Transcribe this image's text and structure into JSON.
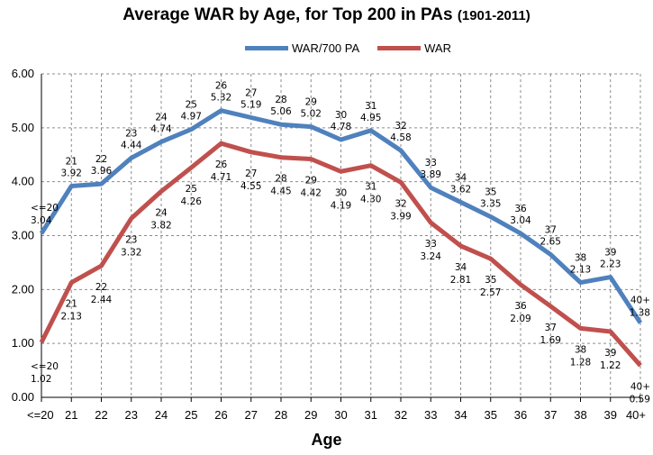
{
  "title": "Average WAR by Age, for Top 200 in PAs",
  "title_years": "(1901-2011)",
  "chart_data": {
    "type": "line",
    "title": "Average WAR by Age, for Top 200 in PAs (1901-2011)",
    "xlabel": "Age",
    "ylabel": "",
    "categories": [
      "<=20",
      "21",
      "22",
      "23",
      "24",
      "25",
      "26",
      "27",
      "28",
      "29",
      "30",
      "31",
      "32",
      "33",
      "34",
      "35",
      "36",
      "37",
      "38",
      "39",
      "40+"
    ],
    "ylim": [
      0,
      6
    ],
    "yticks": [
      "0.00",
      "1.00",
      "2.00",
      "3.00",
      "4.00",
      "5.00",
      "6.00"
    ],
    "grid": "dashed vertical and horizontal",
    "legend_position": "top",
    "series": [
      {
        "name": "WAR/700 PA",
        "color": "#4f81bd",
        "values": [
          3.04,
          3.92,
          3.96,
          4.44,
          4.74,
          4.97,
          5.32,
          5.19,
          5.06,
          5.02,
          4.78,
          4.95,
          4.58,
          3.89,
          3.62,
          3.35,
          3.04,
          2.65,
          2.13,
          2.23,
          1.38
        ],
        "labels": [
          "3.04",
          "3.92",
          "3.96",
          "4.44",
          "4.74",
          "4.97",
          "5.32",
          "5.19",
          "5.06",
          "5.02",
          "4.78",
          "4.95",
          "4.58",
          "3.89",
          "3.62",
          "3.35",
          "3.04",
          "2.65",
          "2.13",
          "2.23",
          "1.38"
        ]
      },
      {
        "name": "WAR",
        "color": "#c0504d",
        "values": [
          1.02,
          2.13,
          2.44,
          3.32,
          3.82,
          4.26,
          4.71,
          4.55,
          4.45,
          4.42,
          4.19,
          4.3,
          3.99,
          3.24,
          2.81,
          2.57,
          2.09,
          1.69,
          1.28,
          1.22,
          0.59
        ],
        "labels": [
          "1.02",
          "2.13",
          "2.44",
          "3.32",
          "3.82",
          "4.26",
          "4.71",
          "4.55",
          "4.45",
          "4.42",
          "4.19",
          "4.30",
          "3.99",
          "3.24",
          "2.81",
          "2.57",
          "2.09",
          "1.69",
          "1.28",
          "1.22",
          "0.59"
        ]
      }
    ]
  }
}
